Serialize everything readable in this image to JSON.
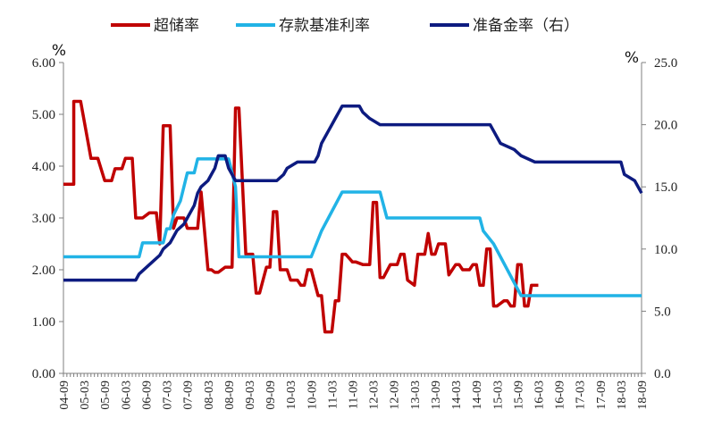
{
  "chart_data": {
    "type": "line",
    "title": "",
    "left_unit": "%",
    "right_unit": "%",
    "legend_position": "top",
    "grid": false,
    "left_axis": {
      "min": 0,
      "max": 6,
      "ticks": [
        "0.00",
        "1.00",
        "2.00",
        "3.00",
        "4.00",
        "5.00",
        "6.00"
      ]
    },
    "right_axis": {
      "min": 0,
      "max": 25,
      "ticks": [
        "0.0",
        "5.0",
        "10.0",
        "15.0",
        "20.0",
        "25.0"
      ]
    },
    "x_range": [
      "04-09",
      "18-09"
    ],
    "x_ticks": [
      "04-09",
      "05-03",
      "05-09",
      "06-03",
      "06-09",
      "07-03",
      "07-09",
      "08-03",
      "08-09",
      "09-03",
      "09-09",
      "10-03",
      "10-09",
      "11-03",
      "11-09",
      "12-03",
      "12-09",
      "13-03",
      "13-09",
      "14-03",
      "14-09",
      "15-03",
      "15-09",
      "16-03",
      "16-09",
      "17-03",
      "17-09",
      "18-03",
      "18-09"
    ],
    "series": [
      {
        "name": "超储率",
        "axis": "left",
        "color": "#c00000",
        "points": [
          [
            "04-09",
            3.65
          ],
          [
            "04-12",
            3.65
          ],
          [
            "04-12",
            5.25
          ],
          [
            "05-02",
            5.25
          ],
          [
            "05-05",
            4.15
          ],
          [
            "05-07",
            4.15
          ],
          [
            "05-09",
            3.72
          ],
          [
            "05-11",
            3.72
          ],
          [
            "05-12",
            3.95
          ],
          [
            "06-02",
            3.95
          ],
          [
            "06-03",
            4.15
          ],
          [
            "06-05",
            4.15
          ],
          [
            "06-06",
            3.0
          ],
          [
            "06-08",
            3.0
          ],
          [
            "06-10",
            3.1
          ],
          [
            "06-12",
            3.1
          ],
          [
            "07-01",
            2.5
          ],
          [
            "07-02",
            4.78
          ],
          [
            "07-04",
            4.78
          ],
          [
            "07-05",
            2.8
          ],
          [
            "07-06",
            3.0
          ],
          [
            "07-08",
            3.0
          ],
          [
            "07-09",
            2.8
          ],
          [
            "07-12",
            2.8
          ],
          [
            "08-01",
            3.5
          ],
          [
            "08-03",
            2.0
          ],
          [
            "08-04",
            2.0
          ],
          [
            "08-05",
            1.95
          ],
          [
            "08-06",
            1.95
          ],
          [
            "08-08",
            2.05
          ],
          [
            "08-10",
            2.05
          ],
          [
            "08-11",
            5.12
          ],
          [
            "08-12",
            5.12
          ],
          [
            "09-02",
            2.3
          ],
          [
            "09-04",
            2.3
          ],
          [
            "09-05",
            1.55
          ],
          [
            "09-06",
            1.55
          ],
          [
            "09-08",
            2.05
          ],
          [
            "09-09",
            2.05
          ],
          [
            "09-10",
            3.12
          ],
          [
            "09-11",
            3.12
          ],
          [
            "09-12",
            2.0
          ],
          [
            "10-02",
            2.0
          ],
          [
            "10-03",
            1.8
          ],
          [
            "10-05",
            1.8
          ],
          [
            "10-06",
            1.7
          ],
          [
            "10-07",
            1.7
          ],
          [
            "10-08",
            2.0
          ],
          [
            "10-09",
            2.0
          ],
          [
            "10-11",
            1.5
          ],
          [
            "10-12",
            1.5
          ],
          [
            "11-01",
            0.8
          ],
          [
            "11-03",
            0.8
          ],
          [
            "11-04",
            1.4
          ],
          [
            "11-05",
            1.4
          ],
          [
            "11-06",
            2.3
          ],
          [
            "11-07",
            2.3
          ],
          [
            "11-09",
            2.15
          ],
          [
            "11-10",
            2.15
          ],
          [
            "11-12",
            2.1
          ],
          [
            "12-01",
            2.1
          ],
          [
            "12-02",
            2.1
          ],
          [
            "12-03",
            3.3
          ],
          [
            "12-04",
            3.3
          ],
          [
            "12-05",
            1.85
          ],
          [
            "12-06",
            1.85
          ],
          [
            "12-08",
            2.1
          ],
          [
            "12-10",
            2.1
          ],
          [
            "12-11",
            2.3
          ],
          [
            "12-12",
            2.3
          ],
          [
            "13-01",
            1.8
          ],
          [
            "13-03",
            1.7
          ],
          [
            "13-04",
            2.3
          ],
          [
            "13-06",
            2.3
          ],
          [
            "13-07",
            2.7
          ],
          [
            "13-08",
            2.3
          ],
          [
            "13-09",
            2.3
          ],
          [
            "13-10",
            2.5
          ],
          [
            "13-12",
            2.5
          ],
          [
            "14-01",
            1.9
          ],
          [
            "14-03",
            2.1
          ],
          [
            "14-04",
            2.1
          ],
          [
            "14-05",
            2.0
          ],
          [
            "14-07",
            2.0
          ],
          [
            "14-08",
            2.1
          ],
          [
            "14-09",
            2.1
          ],
          [
            "14-10",
            1.7
          ],
          [
            "14-11",
            1.7
          ],
          [
            "14-12",
            2.4
          ],
          [
            "15-01",
            2.4
          ],
          [
            "15-02",
            1.3
          ],
          [
            "15-03",
            1.3
          ],
          [
            "15-05",
            1.4
          ],
          [
            "15-06",
            1.4
          ],
          [
            "15-07",
            1.3
          ],
          [
            "15-08",
            1.3
          ],
          [
            "15-09",
            2.1
          ],
          [
            "15-10",
            2.1
          ],
          [
            "15-11",
            1.3
          ],
          [
            "15-12",
            1.3
          ],
          [
            "16-01",
            1.7
          ],
          [
            "16-03",
            1.7
          ]
        ]
      },
      {
        "name": "存款基准利率",
        "axis": "left",
        "color": "#21b3e6",
        "points": [
          [
            "04-09",
            2.25
          ],
          [
            "06-07",
            2.25
          ],
          [
            "06-08",
            2.52
          ],
          [
            "07-02",
            2.52
          ],
          [
            "07-03",
            2.79
          ],
          [
            "07-04",
            2.79
          ],
          [
            "07-05",
            3.06
          ],
          [
            "07-07",
            3.33
          ],
          [
            "07-08",
            3.6
          ],
          [
            "07-09",
            3.87
          ],
          [
            "07-11",
            3.87
          ],
          [
            "07-12",
            4.14
          ],
          [
            "08-09",
            4.14
          ],
          [
            "08-10",
            3.87
          ],
          [
            "08-11",
            3.6
          ],
          [
            "08-12",
            2.25
          ],
          [
            "10-09",
            2.25
          ],
          [
            "10-12",
            2.75
          ],
          [
            "11-02",
            3.0
          ],
          [
            "11-04",
            3.25
          ],
          [
            "11-06",
            3.5
          ],
          [
            "12-05",
            3.5
          ],
          [
            "12-06",
            3.25
          ],
          [
            "12-07",
            3.0
          ],
          [
            "14-10",
            3.0
          ],
          [
            "14-11",
            2.75
          ],
          [
            "15-02",
            2.5
          ],
          [
            "15-04",
            2.25
          ],
          [
            "15-06",
            2.0
          ],
          [
            "15-08",
            1.75
          ],
          [
            "15-10",
            1.5
          ],
          [
            "18-09",
            1.5
          ]
        ]
      },
      {
        "name": "准备金率（右）",
        "axis": "right",
        "color": "#0d1b80",
        "points": [
          [
            "04-09",
            7.5
          ],
          [
            "06-06",
            7.5
          ],
          [
            "06-07",
            8.0
          ],
          [
            "06-11",
            9.0
          ],
          [
            "07-01",
            9.5
          ],
          [
            "07-02",
            10.0
          ],
          [
            "07-04",
            10.5
          ],
          [
            "07-05",
            11.0
          ],
          [
            "07-06",
            11.5
          ],
          [
            "07-08",
            12.0
          ],
          [
            "07-09",
            12.5
          ],
          [
            "07-10",
            13.0
          ],
          [
            "07-11",
            13.5
          ],
          [
            "07-12",
            14.5
          ],
          [
            "08-01",
            15.0
          ],
          [
            "08-03",
            15.5
          ],
          [
            "08-04",
            16.0
          ],
          [
            "08-05",
            16.5
          ],
          [
            "08-06",
            17.5
          ],
          [
            "08-08",
            17.5
          ],
          [
            "08-09",
            16.5
          ],
          [
            "08-10",
            16.0
          ],
          [
            "08-11",
            15.5
          ],
          [
            "09-11",
            15.5
          ],
          [
            "10-01",
            16.0
          ],
          [
            "10-02",
            16.5
          ],
          [
            "10-05",
            17.0
          ],
          [
            "10-10",
            17.0
          ],
          [
            "10-11",
            17.5
          ],
          [
            "10-12",
            18.5
          ],
          [
            "11-01",
            19.0
          ],
          [
            "11-02",
            19.5
          ],
          [
            "11-03",
            20.0
          ],
          [
            "11-04",
            20.5
          ],
          [
            "11-05",
            21.0
          ],
          [
            "11-06",
            21.5
          ],
          [
            "11-11",
            21.5
          ],
          [
            "11-12",
            21.0
          ],
          [
            "12-02",
            20.5
          ],
          [
            "12-05",
            20.0
          ],
          [
            "15-01",
            20.0
          ],
          [
            "15-02",
            19.5
          ],
          [
            "15-04",
            18.5
          ],
          [
            "15-08",
            18.0
          ],
          [
            "15-10",
            17.5
          ],
          [
            "16-02",
            17.0
          ],
          [
            "16-03",
            17.0
          ],
          [
            "18-03",
            17.0
          ],
          [
            "18-04",
            16.0
          ],
          [
            "18-07",
            15.5
          ],
          [
            "18-09",
            14.5
          ]
        ]
      }
    ]
  }
}
